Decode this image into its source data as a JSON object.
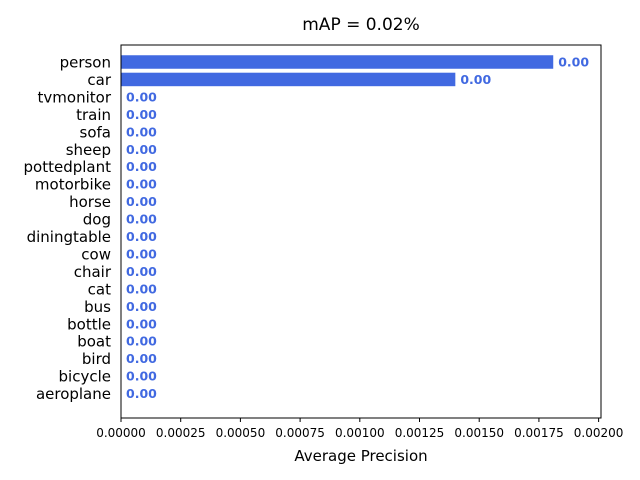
{
  "chart_data": {
    "type": "bar",
    "orientation": "horizontal",
    "title": "mAP = 0.02%",
    "xlabel": "Average Precision",
    "ylabel": "",
    "categories": [
      "person",
      "car",
      "tvmonitor",
      "train",
      "sofa",
      "sheep",
      "pottedplant",
      "motorbike",
      "horse",
      "dog",
      "diningtable",
      "cow",
      "chair",
      "cat",
      "bus",
      "bottle",
      "boat",
      "bird",
      "bicycle",
      "aeroplane"
    ],
    "values": [
      0.00181,
      0.0014,
      0,
      0,
      0,
      0,
      0,
      0,
      0,
      0,
      0,
      0,
      0,
      0,
      0,
      0,
      0,
      0,
      0,
      0
    ],
    "data_labels": [
      "0.00",
      "0.00",
      "0.00",
      "0.00",
      "0.00",
      "0.00",
      "0.00",
      "0.00",
      "0.00",
      "0.00",
      "0.00",
      "0.00",
      "0.00",
      "0.00",
      "0.00",
      "0.00",
      "0.00",
      "0.00",
      "0.00",
      "0.00"
    ],
    "xlim": [
      0,
      0.00201
    ],
    "xticks": [
      0,
      0.00025,
      0.0005,
      0.00075,
      0.001,
      0.00125,
      0.0015,
      0.00175,
      0.002
    ],
    "xtick_labels": [
      "0.00000",
      "0.00025",
      "0.00050",
      "0.00075",
      "0.00100",
      "0.00125",
      "0.00150",
      "0.00175",
      "0.00200"
    ],
    "grid": false,
    "bar_color": "#4169e1",
    "label_color": "#4169e1"
  }
}
